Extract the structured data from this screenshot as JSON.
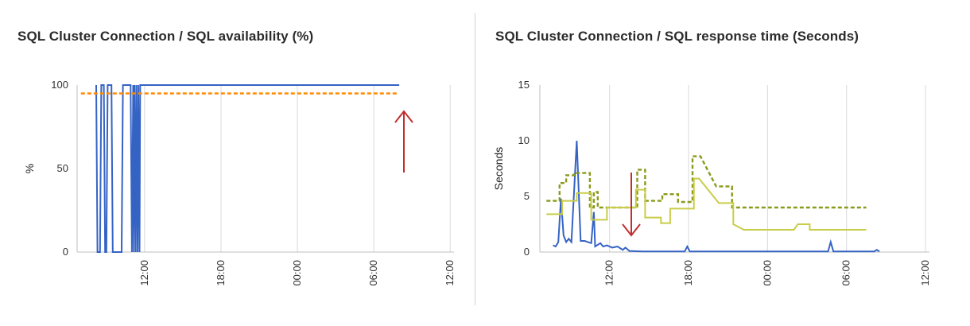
{
  "colors": {
    "grid": "#d9d9d9",
    "axis": "#bfbfbf",
    "blue": "#3563c4",
    "orange": "#ff8a00",
    "olive": "#8a9a1a",
    "yellow": "#c9cd4a",
    "arrow": "#c0302e"
  },
  "chart_data": [
    {
      "type": "line",
      "title": "SQL Cluster Connection / SQL availability (%)",
      "ylabel": "%",
      "xlabel": "",
      "ylim": [
        0,
        100
      ],
      "yticks": [
        0,
        50,
        100
      ],
      "xlim": [
        6.7,
        36.3
      ],
      "xticks": [
        {
          "value": 12,
          "label": "12:00"
        },
        {
          "value": 18,
          "label": "18:00"
        },
        {
          "value": 24,
          "label": "00:00"
        },
        {
          "value": 30,
          "label": "06:00"
        },
        {
          "value": 36,
          "label": "12:00"
        }
      ],
      "grid": true,
      "legend": "none",
      "annotations": [
        {
          "type": "arrow",
          "direction": "up",
          "color": "#c0302e"
        }
      ],
      "series": [
        {
          "color": "#3563c4",
          "style": "solid",
          "points": [
            [
              8.2,
              100
            ],
            [
              8.3,
              0
            ],
            [
              8.5,
              0
            ],
            [
              8.6,
              100
            ],
            [
              8.8,
              100
            ],
            [
              8.9,
              0
            ],
            [
              9.0,
              0
            ],
            [
              9.1,
              100
            ],
            [
              9.4,
              100
            ],
            [
              9.5,
              0
            ],
            [
              10.2,
              0
            ],
            [
              10.3,
              100
            ],
            [
              10.9,
              100
            ],
            [
              11.0,
              0
            ],
            [
              11.1,
              100
            ],
            [
              11.15,
              0
            ],
            [
              11.2,
              100
            ],
            [
              11.3,
              0
            ],
            [
              11.35,
              100
            ],
            [
              11.45,
              0
            ],
            [
              11.5,
              100
            ],
            [
              11.6,
              0
            ],
            [
              11.65,
              100
            ],
            [
              11.7,
              100
            ],
            [
              32.0,
              100
            ]
          ]
        },
        {
          "color": "#ff8a00",
          "style": "dashed",
          "points": [
            [
              7.0,
              95
            ],
            [
              31.8,
              95
            ]
          ]
        }
      ]
    },
    {
      "type": "line",
      "title": "SQL Cluster Connection / SQL response time (Seconds)",
      "ylabel": "Seconds",
      "xlabel": "",
      "ylim": [
        0,
        15
      ],
      "yticks": [
        0,
        5,
        10,
        15
      ],
      "xlim": [
        6.7,
        36.3
      ],
      "xticks": [
        {
          "value": 12,
          "label": "12:00"
        },
        {
          "value": 18,
          "label": "18:00"
        },
        {
          "value": 24,
          "label": "00:00"
        },
        {
          "value": 30,
          "label": "06:00"
        },
        {
          "value": 36,
          "label": "12:00"
        }
      ],
      "grid": true,
      "legend": "none",
      "annotations": [
        {
          "type": "arrow",
          "direction": "down",
          "color": "#c0302e"
        }
      ],
      "series": [
        {
          "color": "#3563c4",
          "style": "solid",
          "points": [
            [
              7.7,
              0.6
            ],
            [
              7.9,
              0.5
            ],
            [
              8.1,
              0.9
            ],
            [
              8.3,
              4.8
            ],
            [
              8.5,
              1.5
            ],
            [
              8.7,
              0.9
            ],
            [
              8.9,
              1.2
            ],
            [
              9.1,
              0.9
            ],
            [
              9.5,
              10.0
            ],
            [
              9.8,
              1.0
            ],
            [
              10.1,
              1.0
            ],
            [
              10.6,
              0.8
            ],
            [
              10.8,
              3.6
            ],
            [
              10.9,
              0.5
            ],
            [
              11.3,
              0.8
            ],
            [
              11.5,
              0.5
            ],
            [
              11.8,
              0.6
            ],
            [
              12.2,
              0.4
            ],
            [
              12.6,
              0.5
            ],
            [
              13.0,
              0.2
            ],
            [
              13.2,
              0.4
            ],
            [
              13.5,
              0.1
            ],
            [
              14.5,
              0.05
            ],
            [
              17.7,
              0.05
            ],
            [
              17.9,
              0.5
            ],
            [
              18.1,
              0.05
            ],
            [
              28.6,
              0.05
            ],
            [
              28.8,
              0.9
            ],
            [
              29.0,
              0.05
            ],
            [
              32.1,
              0.05
            ],
            [
              32.3,
              0.2
            ],
            [
              32.5,
              0.05
            ]
          ]
        },
        {
          "color": "#8a9a1a",
          "style": "dashed",
          "points": [
            [
              7.2,
              4.6
            ],
            [
              8.2,
              4.6
            ],
            [
              8.2,
              6.2
            ],
            [
              8.7,
              6.2
            ],
            [
              8.7,
              6.9
            ],
            [
              9.3,
              6.9
            ],
            [
              9.3,
              7.1
            ],
            [
              10.5,
              7.1
            ],
            [
              10.5,
              4.0
            ],
            [
              10.8,
              4.0
            ],
            [
              10.8,
              5.4
            ],
            [
              11.1,
              5.4
            ],
            [
              11.1,
              4.0
            ],
            [
              14.1,
              4.0
            ],
            [
              14.1,
              7.4
            ],
            [
              14.7,
              7.4
            ],
            [
              14.7,
              4.6
            ],
            [
              16.0,
              4.6
            ],
            [
              16.0,
              5.2
            ],
            [
              17.2,
              5.2
            ],
            [
              17.2,
              4.5
            ],
            [
              18.3,
              4.5
            ],
            [
              18.3,
              8.6
            ],
            [
              18.9,
              8.6
            ],
            [
              20.1,
              5.9
            ],
            [
              21.3,
              5.9
            ],
            [
              21.3,
              4.0
            ],
            [
              31.5,
              4.0
            ]
          ]
        },
        {
          "color": "#c9cd4a",
          "style": "solid",
          "points": [
            [
              7.2,
              3.4
            ],
            [
              8.4,
              3.4
            ],
            [
              8.4,
              4.6
            ],
            [
              9.5,
              4.6
            ],
            [
              9.5,
              5.3
            ],
            [
              10.6,
              5.3
            ],
            [
              10.6,
              2.9
            ],
            [
              11.8,
              2.9
            ],
            [
              11.8,
              4.0
            ],
            [
              14.0,
              4.0
            ],
            [
              14.0,
              5.6
            ],
            [
              14.7,
              5.6
            ],
            [
              14.7,
              3.1
            ],
            [
              15.9,
              3.1
            ],
            [
              15.9,
              2.6
            ],
            [
              16.6,
              2.6
            ],
            [
              16.6,
              3.9
            ],
            [
              18.4,
              3.9
            ],
            [
              18.4,
              6.6
            ],
            [
              18.8,
              6.6
            ],
            [
              20.3,
              4.4
            ],
            [
              21.4,
              4.4
            ],
            [
              21.4,
              2.5
            ],
            [
              22.2,
              2.0
            ],
            [
              26.0,
              2.0
            ],
            [
              26.3,
              2.5
            ],
            [
              27.2,
              2.5
            ],
            [
              27.2,
              2.0
            ],
            [
              31.5,
              2.0
            ]
          ]
        }
      ]
    }
  ]
}
